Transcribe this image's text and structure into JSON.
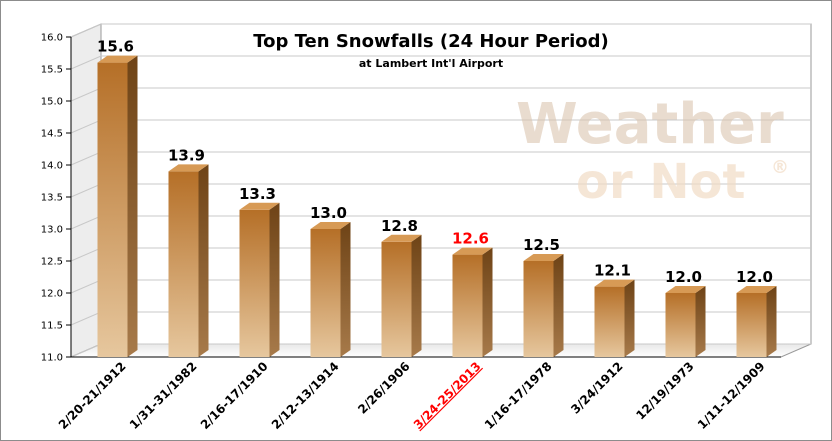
{
  "colors": {
    "bar_front_top": "#b56f27",
    "bar_front_bottom": "#e6c79e",
    "bar_side": "#6e4316",
    "bar_top": "#d79a55",
    "highlight": "#ff0000",
    "grid": "#c8c8c8"
  },
  "watermark": {
    "line1": "Weather",
    "line2": "or Not",
    "mark": "®"
  },
  "chart_data": {
    "type": "bar",
    "title": "Top Ten Snowfalls (24 Hour Period)",
    "subtitle": "at Lambert Int'l Airport",
    "xlabel": "",
    "ylabel": "",
    "ylim": [
      11.0,
      16.0
    ],
    "yticks": [
      "11.0",
      "11.5",
      "12.0",
      "12.5",
      "13.0",
      "13.5",
      "14.0",
      "14.5",
      "15.0",
      "15.5",
      "16.0"
    ],
    "categories": [
      "2/20-21/1912",
      "1/31-31/1982",
      "2/16-17/1910",
      "2/12-13/1914",
      "2/26/1906",
      "3/24-25/2013",
      "1/16-17/1978",
      "3/24/1912",
      "12/19/1973",
      "1/11-12/1909"
    ],
    "values": [
      15.6,
      13.9,
      13.3,
      13.0,
      12.8,
      12.6,
      12.5,
      12.1,
      12.0,
      12.0
    ],
    "value_labels": [
      "15.6",
      "13.9",
      "13.3",
      "13.0",
      "12.8",
      "12.6",
      "12.5",
      "12.1",
      "12.0",
      "12.0"
    ],
    "highlighted_category": "3/24-25/2013",
    "grid": true,
    "legend": "none"
  }
}
